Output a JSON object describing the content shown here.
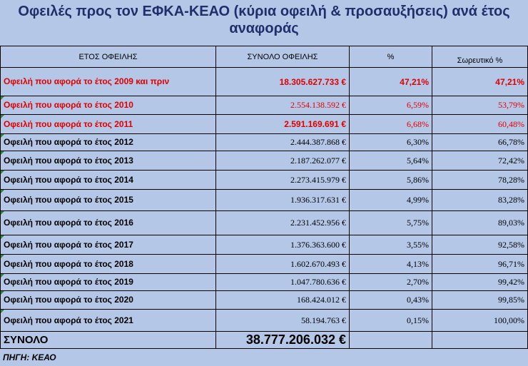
{
  "title": "Οφειλές προς τον ΕΦΚΑ-ΚΕΑΟ (κύρια οφειλή & προσαυξήσεις) ανά έτος αναφοράς",
  "headers": {
    "year": "ΕΤΟΣ ΟΦΕΙΛΗΣ",
    "total": "ΣΥΝΟΛΟ ΟΦΕΙΛΗΣ",
    "pct": "%",
    "cum": "Σωρευτικό %"
  },
  "rows": [
    {
      "label": "Οφειλή που αφορά το έτος 2009 και πριν",
      "amount": "18.305.627.733 €",
      "pct": "47,21%",
      "cum": "47,21%"
    },
    {
      "label": "Οφειλή που αφορά το έτος 2010",
      "amount": "2.554.138.592 €",
      "pct": "6,59%",
      "cum": "53,79%"
    },
    {
      "label": "Οφειλή που αφορά το έτος 2011",
      "amount": "2.591.169.691 €",
      "pct": "6,68%",
      "cum": "60,48%"
    },
    {
      "label": "Οφειλή που αφορά το έτος 2012",
      "amount": "2.444.387.868 €",
      "pct": "6,30%",
      "cum": "66,78%"
    },
    {
      "label": "Οφειλή που αφορά το έτος 2013",
      "amount": "2.187.262.077 €",
      "pct": "5,64%",
      "cum": "72,42%"
    },
    {
      "label": "Οφειλή που αφορά το έτος 2014",
      "amount": "2.273.415.979 €",
      "pct": "5,86%",
      "cum": "78,28%"
    },
    {
      "label": "Οφειλή που αφορά το έτος 2015",
      "amount": "1.936.317.631 €",
      "pct": "4,99%",
      "cum": "83,28%"
    },
    {
      "label": "Οφειλή που αφορά το έτος 2016",
      "amount": "2.231.452.956 €",
      "pct": "5,75%",
      "cum": "89,03%"
    },
    {
      "label": "Οφειλή που αφορά το έτος 2017",
      "amount": "1.376.363.600 €",
      "pct": "3,55%",
      "cum": "92,58%"
    },
    {
      "label": "Οφειλή που αφορά το έτος 2018",
      "amount": "1.602.670.493 €",
      "pct": "4,13%",
      "cum": "96,71%"
    },
    {
      "label": "Οφειλή που αφορά το έτος 2019",
      "amount": "1.047.780.636 €",
      "pct": "2,70%",
      "cum": "99,42%"
    },
    {
      "label": "Οφειλή που αφορά το έτος 2020",
      "amount": "168.424.012 €",
      "pct": "0,43%",
      "cum": "99,85%"
    },
    {
      "label": "Οφειλή που αφορά το έτος 2021",
      "amount": "58.194.763 €",
      "pct": "0,15%",
      "cum": "100,00%"
    }
  ],
  "total": {
    "label": "ΣΥΝΟΛΟ",
    "amount": "38.777.206.032 €"
  },
  "source": "ΠΗΓΗ: ΚΕΑΟ",
  "colors": {
    "background": "#b4c7e7",
    "title": "#1f2f6a",
    "highlight": "#e00000",
    "marker": "#1f8a3b"
  }
}
